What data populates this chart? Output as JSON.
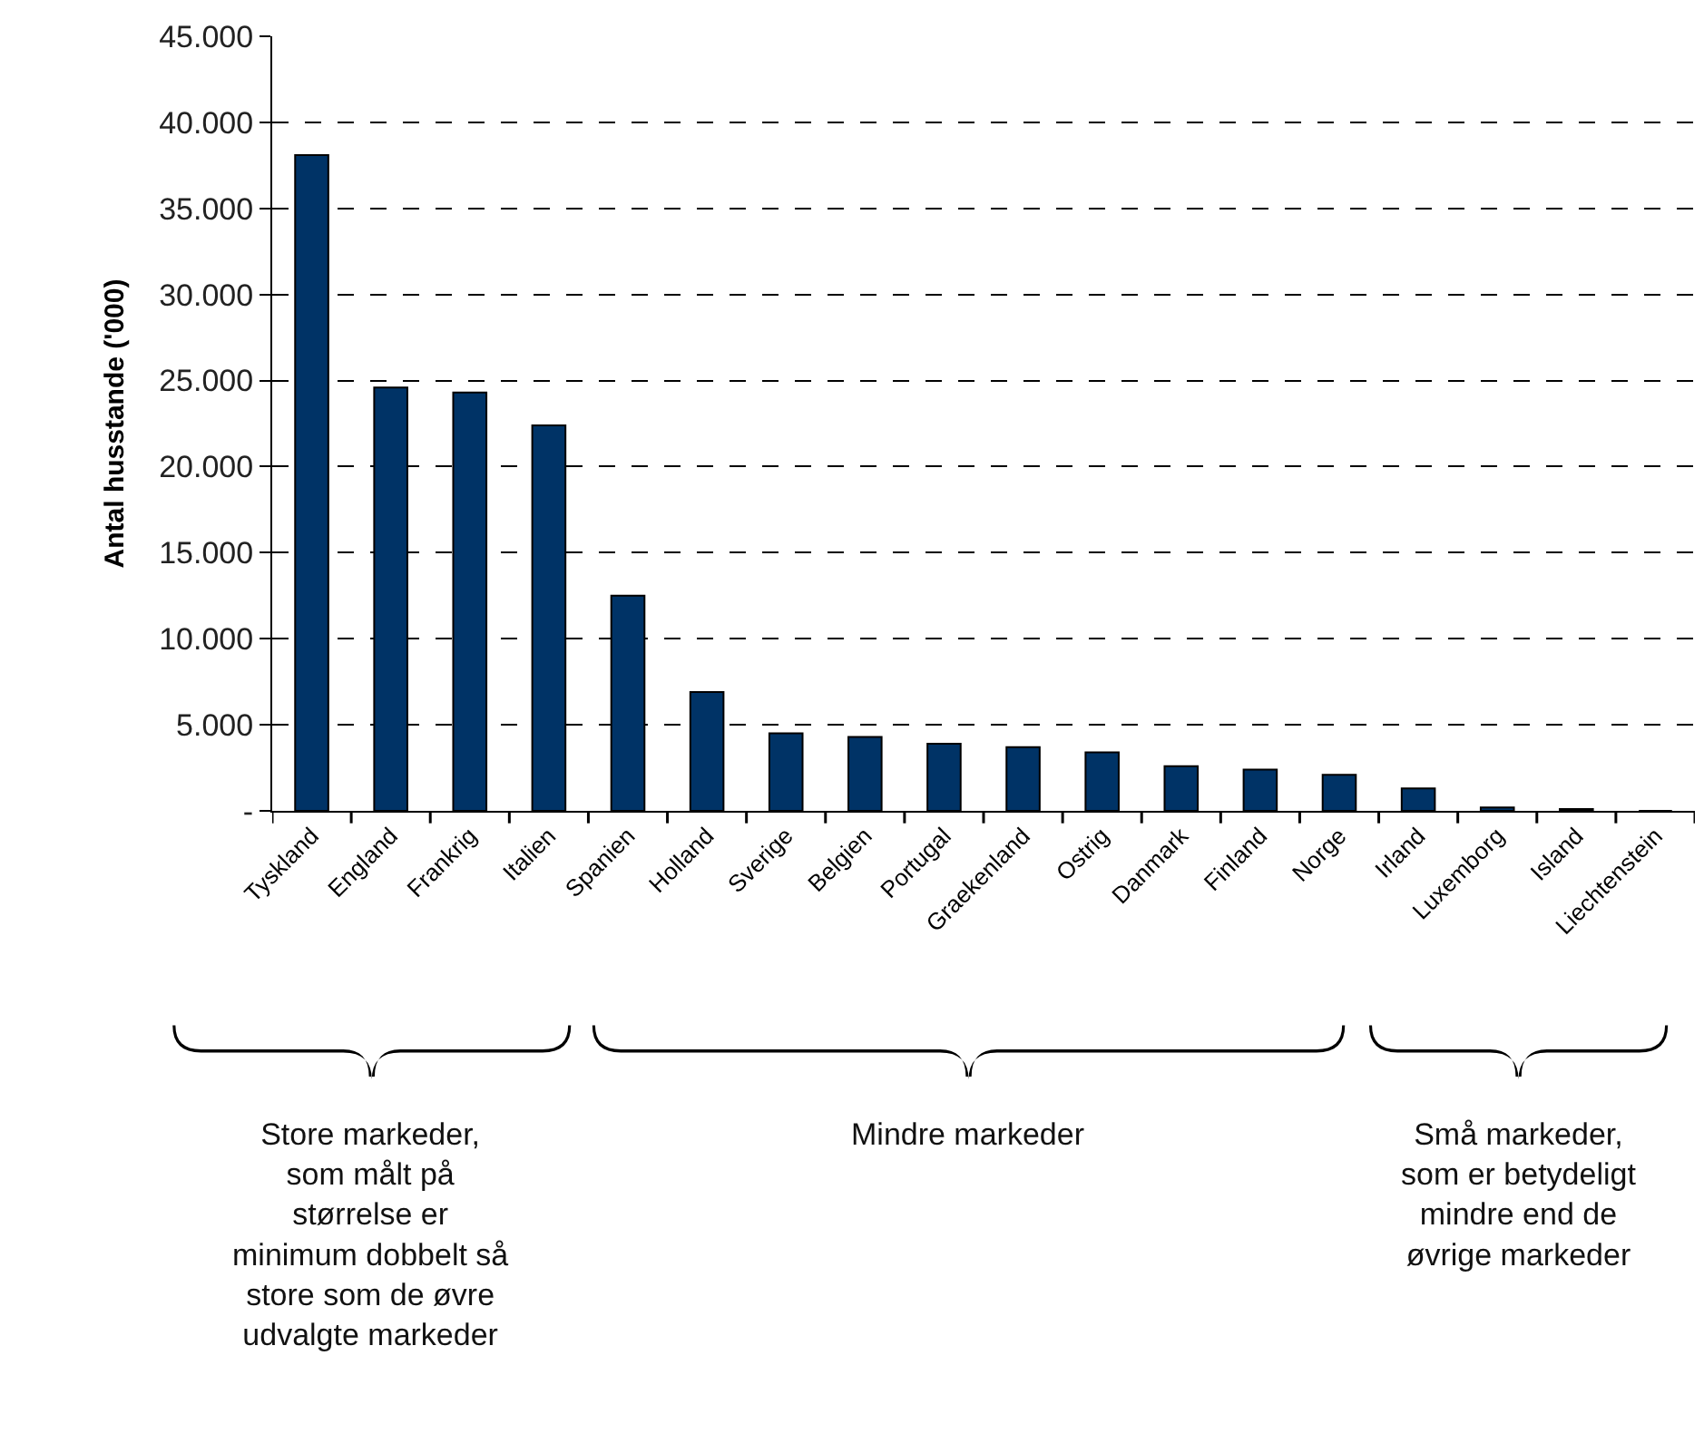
{
  "chart_data": {
    "type": "bar",
    "ylabel": "Antal husstande ('000)",
    "categories": [
      "Tyskland",
      "England",
      "Frankrig",
      "Italien",
      "Spanien",
      "Holland",
      "Sverige",
      "Belgien",
      "Portugal",
      "Graekenland",
      "Ostrig",
      "Danmark",
      "Finland",
      "Norge",
      "Irland",
      "Luxemborg",
      "Island",
      "Liechtenstein"
    ],
    "values": [
      38100,
      24600,
      24300,
      22400,
      12500,
      6900,
      4500,
      4300,
      3900,
      3700,
      3400,
      2600,
      2400,
      2100,
      1300,
      200,
      100,
      0
    ],
    "color": "#003366",
    "ylim": [
      0,
      45000
    ],
    "yticks": [
      {
        "value": 0,
        "label": "-"
      },
      {
        "value": 5000,
        "label": "5.000"
      },
      {
        "value": 10000,
        "label": "10.000"
      },
      {
        "value": 15000,
        "label": "15.000"
      },
      {
        "value": 20000,
        "label": "20.000"
      },
      {
        "value": 25000,
        "label": "25.000"
      },
      {
        "value": 30000,
        "label": "30.000"
      },
      {
        "value": 35000,
        "label": "35.000"
      },
      {
        "value": 40000,
        "label": "40.000"
      },
      {
        "value": 45000,
        "label": "45.000"
      }
    ],
    "grid": "y",
    "legend": false,
    "annotations": [
      "Store markeder,\nsom målt på\nstørrelse er\nminimum dobbelt så\nstore som de øvre\nudvalgte markeder",
      "Mindre markeder",
      "Små markeder,\nsom er betydeligt\nmindre end de\nøvrige markeder"
    ]
  }
}
